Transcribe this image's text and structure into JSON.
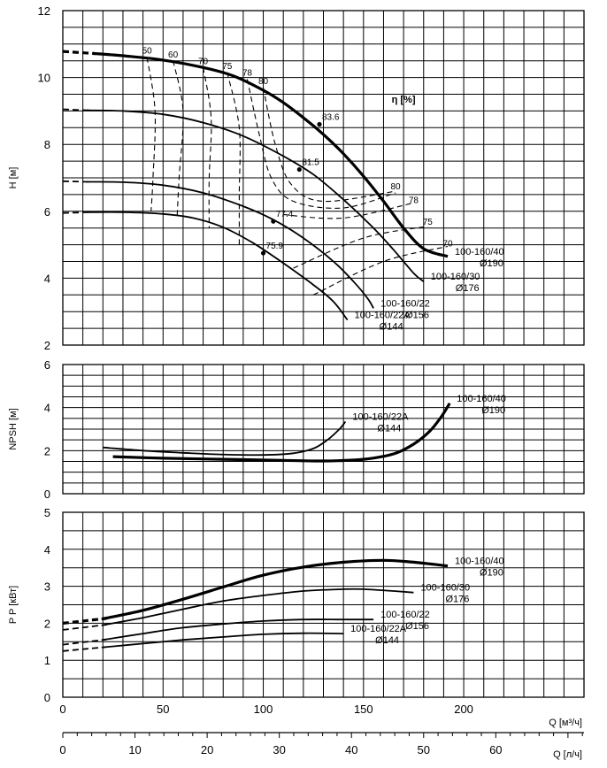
{
  "chart_data": [
    {
      "type": "line",
      "ylabel": "H [м]",
      "xlim": [
        0,
        260
      ],
      "ylim": [
        2,
        12
      ],
      "yticks": [
        "2",
        "4",
        "6",
        "8",
        "10",
        "12"
      ],
      "eta_label": "η [%]",
      "series": [
        {
          "name": "100-160/40",
          "sub": "Ø190",
          "dashed_until": 15,
          "bold": true,
          "points": [
            [
              0,
              10.78
            ],
            [
              15,
              10.72
            ],
            [
              30,
              10.65
            ],
            [
              50,
              10.52
            ],
            [
              70,
              10.3
            ],
            [
              85,
              10.05
            ],
            [
              100,
              9.62
            ],
            [
              110,
              9.25
            ],
            [
              120,
              8.8
            ],
            [
              130,
              8.3
            ],
            [
              140,
              7.72
            ],
            [
              150,
              7.05
            ],
            [
              160,
              6.3
            ],
            [
              170,
              5.5
            ],
            [
              180,
              4.88
            ],
            [
              192,
              4.65
            ]
          ]
        },
        {
          "name": "100-160/30",
          "sub": "Ø176",
          "dashed_until": 12,
          "bold": false,
          "points": [
            [
              0,
              9.05
            ],
            [
              12,
              9.02
            ],
            [
              30,
              9.0
            ],
            [
              50,
              8.9
            ],
            [
              70,
              8.65
            ],
            [
              90,
              8.25
            ],
            [
              110,
              7.65
            ],
            [
              125,
              7.1
            ],
            [
              140,
              6.35
            ],
            [
              155,
              5.5
            ],
            [
              165,
              4.85
            ],
            [
              175,
              4.15
            ],
            [
              180,
              3.9
            ]
          ]
        },
        {
          "name": "100-160/22",
          "sub": "Ø156",
          "dashed_until": 12,
          "bold": false,
          "points": [
            [
              0,
              6.9
            ],
            [
              12,
              6.88
            ],
            [
              30,
              6.87
            ],
            [
              50,
              6.78
            ],
            [
              70,
              6.55
            ],
            [
              90,
              6.15
            ],
            [
              105,
              5.75
            ],
            [
              120,
              5.2
            ],
            [
              135,
              4.5
            ],
            [
              145,
              3.9
            ],
            [
              152,
              3.4
            ],
            [
              155,
              3.1
            ]
          ]
        },
        {
          "name": "100-160/22A",
          "sub": "Ø144",
          "dashed_until": 12,
          "bold": false,
          "points": [
            [
              0,
              5.95
            ],
            [
              12,
              5.97
            ],
            [
              30,
              5.97
            ],
            [
              50,
              5.92
            ],
            [
              65,
              5.8
            ],
            [
              80,
              5.52
            ],
            [
              95,
              5.05
            ],
            [
              110,
              4.45
            ],
            [
              125,
              3.8
            ],
            [
              135,
              3.3
            ],
            [
              142,
              2.75
            ]
          ]
        }
      ],
      "efficiency_points": [
        {
          "label": "83.6",
          "q": 128,
          "h": 8.6
        },
        {
          "label": "81.5",
          "q": 118,
          "h": 7.25
        },
        {
          "label": "77.4",
          "q": 105,
          "h": 5.7
        },
        {
          "label": "75.9",
          "q": 100,
          "h": 4.75
        }
      ],
      "iso_efficiency_labels": [
        {
          "label": "50",
          "q": 42,
          "h": 10.72
        },
        {
          "label": "60",
          "q": 55,
          "h": 10.6
        },
        {
          "label": "70",
          "q": 70,
          "h": 10.4
        },
        {
          "label": "75",
          "q": 82,
          "h": 10.25
        },
        {
          "label": "78",
          "q": 92,
          "h": 10.05
        },
        {
          "label": "80",
          "q": 100,
          "h": 9.8
        },
        {
          "label": "80",
          "q": 166,
          "h": 6.65
        },
        {
          "label": "78",
          "q": 175,
          "h": 6.25
        },
        {
          "label": "75",
          "q": 182,
          "h": 5.6
        },
        {
          "label": "70",
          "q": 192,
          "h": 4.95
        }
      ]
    },
    {
      "type": "line",
      "ylabel": "NPSH [м]",
      "xlim": [
        0,
        260
      ],
      "ylim": [
        0,
        6
      ],
      "yticks": [
        "0",
        "2",
        "4",
        "6"
      ],
      "series": [
        {
          "name": "100-160/22A",
          "sub": "Ø144",
          "bold": false,
          "points": [
            [
              20,
              2.15
            ],
            [
              40,
              2.0
            ],
            [
              60,
              1.9
            ],
            [
              80,
              1.82
            ],
            [
              100,
              1.8
            ],
            [
              115,
              1.88
            ],
            [
              125,
              2.1
            ],
            [
              132,
              2.5
            ],
            [
              138,
              3.0
            ],
            [
              141,
              3.35
            ]
          ]
        },
        {
          "name": "100-160/40",
          "sub": "Ø190",
          "bold": true,
          "points": [
            [
              25,
              1.72
            ],
            [
              50,
              1.65
            ],
            [
              80,
              1.6
            ],
            [
              110,
              1.55
            ],
            [
              130,
              1.52
            ],
            [
              150,
              1.6
            ],
            [
              165,
              1.85
            ],
            [
              175,
              2.3
            ],
            [
              183,
              2.9
            ],
            [
              189,
              3.6
            ],
            [
              193,
              4.2
            ]
          ]
        }
      ]
    },
    {
      "type": "line",
      "ylabel": "P P [кВт]",
      "xlabel": "Q [м³/ч]",
      "xlabel2": "Q [л/ч]",
      "xlim": [
        0,
        260
      ],
      "ylim": [
        0,
        5
      ],
      "yticks": [
        "0",
        "1",
        "2",
        "3",
        "4",
        "5"
      ],
      "xticks": [
        "0",
        "50",
        "100",
        "150",
        "200"
      ],
      "xticks2": [
        "0",
        "10",
        "20",
        "30",
        "40",
        "50",
        "60"
      ],
      "series": [
        {
          "name": "100-160/40",
          "sub": "Ø190",
          "dashed_until": 20,
          "bold": true,
          "points": [
            [
              0,
              2.0
            ],
            [
              20,
              2.12
            ],
            [
              40,
              2.35
            ],
            [
              60,
              2.65
            ],
            [
              80,
              2.98
            ],
            [
              100,
              3.3
            ],
            [
              120,
              3.52
            ],
            [
              140,
              3.65
            ],
            [
              160,
              3.7
            ],
            [
              175,
              3.65
            ],
            [
              192,
              3.55
            ]
          ]
        },
        {
          "name": "100-160/30",
          "sub": "Ø176",
          "dashed_until": 20,
          "bold": false,
          "points": [
            [
              0,
              1.82
            ],
            [
              20,
              1.95
            ],
            [
              40,
              2.15
            ],
            [
              60,
              2.38
            ],
            [
              80,
              2.6
            ],
            [
              100,
              2.75
            ],
            [
              120,
              2.87
            ],
            [
              140,
              2.92
            ],
            [
              150,
              2.92
            ],
            [
              165,
              2.87
            ],
            [
              175,
              2.83
            ]
          ]
        },
        {
          "name": "100-160/22",
          "sub": "Ø156",
          "dashed_until": 20,
          "bold": false,
          "points": [
            [
              0,
              1.42
            ],
            [
              20,
              1.55
            ],
            [
              40,
              1.72
            ],
            [
              60,
              1.88
            ],
            [
              80,
              1.98
            ],
            [
              100,
              2.06
            ],
            [
              120,
              2.1
            ],
            [
              140,
              2.1
            ],
            [
              155,
              2.1
            ]
          ]
        },
        {
          "name": "100-160/22A",
          "sub": "Ø144",
          "dashed_until": 20,
          "bold": false,
          "points": [
            [
              0,
              1.25
            ],
            [
              20,
              1.35
            ],
            [
              40,
              1.45
            ],
            [
              60,
              1.55
            ],
            [
              80,
              1.63
            ],
            [
              100,
              1.7
            ],
            [
              120,
              1.73
            ],
            [
              140,
              1.72
            ]
          ]
        }
      ]
    }
  ]
}
